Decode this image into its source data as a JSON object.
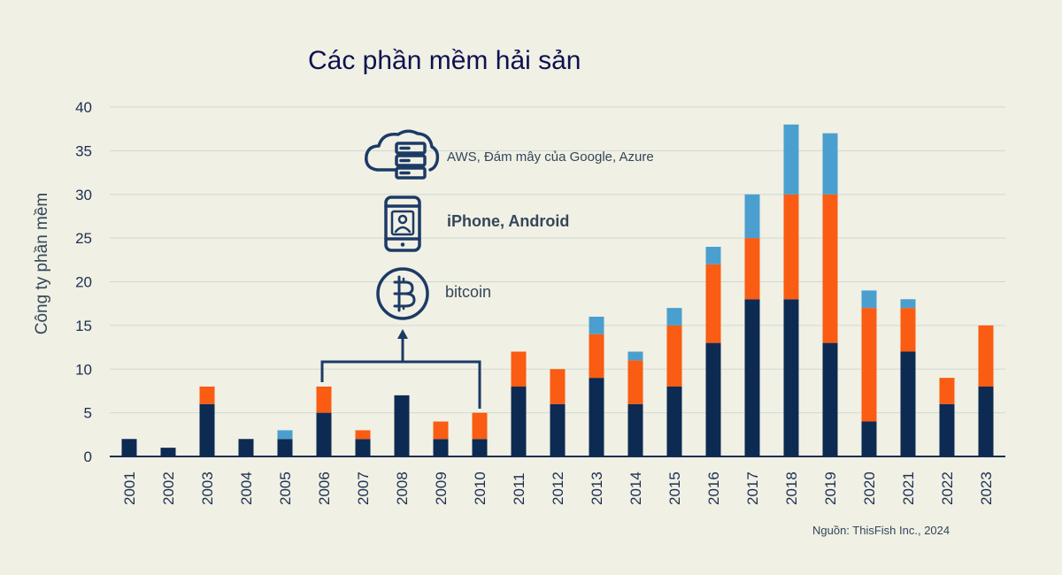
{
  "chart_data": {
    "type": "bar",
    "stacked": true,
    "title": "Các phần mềm hải sản",
    "ylabel": "Công ty phần mềm",
    "xlabel": "",
    "ylim": [
      0,
      40
    ],
    "yticks": [
      0,
      5,
      10,
      15,
      20,
      25,
      30,
      35,
      40
    ],
    "grid": true,
    "categories": [
      "2001",
      "2002",
      "2003",
      "2004",
      "2005",
      "2006",
      "2007",
      "2008",
      "2009",
      "2010",
      "2011",
      "2012",
      "2013",
      "2014",
      "2015",
      "2016",
      "2017",
      "2018",
      "2019",
      "2020",
      "2021",
      "2022",
      "2023"
    ],
    "series": [
      {
        "color": "#0d2a52",
        "values": [
          2,
          1,
          6,
          2,
          2,
          5,
          2,
          7,
          2,
          2,
          8,
          6,
          9,
          6,
          8,
          13,
          18,
          18,
          13,
          4,
          12,
          6,
          8
        ]
      },
      {
        "color": "#f95c12",
        "values": [
          0,
          0,
          2,
          0,
          0,
          3,
          1,
          0,
          2,
          3,
          4,
          4,
          5,
          5,
          7,
          9,
          7,
          12,
          17,
          13,
          5,
          3,
          7
        ]
      },
      {
        "color": "#4a9fcf",
        "values": [
          0,
          0,
          0,
          0,
          1,
          0,
          0,
          0,
          0,
          0,
          0,
          0,
          2,
          1,
          2,
          2,
          5,
          8,
          7,
          2,
          1,
          0,
          0
        ]
      }
    ],
    "annotations": {
      "cloud": "AWS, Đám mây của Google, Azure",
      "mobile": "iPhone, Android",
      "crypto": "bitcoin"
    },
    "source": "Nguồn: ThisFish Inc., 2024"
  },
  "colors": {
    "background": "#f0f0e4",
    "grid": "#cfd9d6",
    "axis": "#1c2f52",
    "icon": "#1c3a66"
  }
}
